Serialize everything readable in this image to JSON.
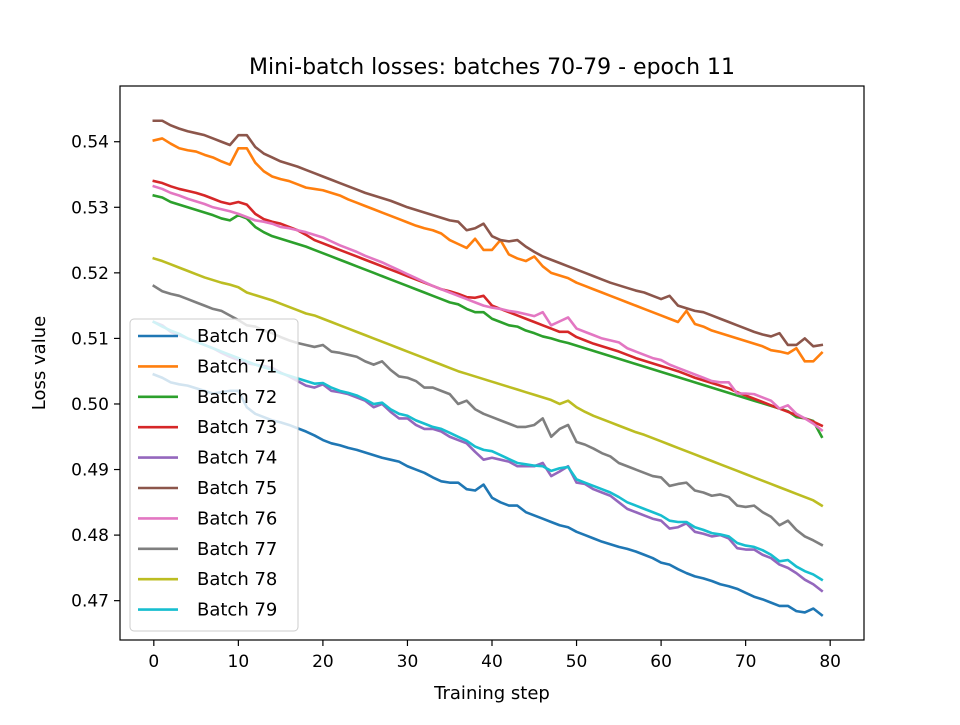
{
  "chart_data": {
    "type": "line",
    "title": "Mini-batch losses: batches 70-79 - epoch 11",
    "xlabel": "Training step",
    "ylabel": "Loss value",
    "xlim": [
      -4,
      84
    ],
    "ylim": [
      0.464,
      0.5485
    ],
    "xticks": [
      0,
      10,
      20,
      30,
      40,
      50,
      60,
      70,
      80
    ],
    "yticks": [
      0.47,
      0.48,
      0.49,
      0.5,
      0.51,
      0.52,
      0.53,
      0.54
    ],
    "ytick_labels": [
      "0.47",
      "0.48",
      "0.49",
      "0.50",
      "0.51",
      "0.52",
      "0.53",
      "0.54"
    ],
    "grid": false,
    "legend_position": "lower-left",
    "x": [
      0,
      1,
      2,
      3,
      4,
      5,
      6,
      7,
      8,
      9,
      10,
      11,
      12,
      13,
      14,
      15,
      16,
      17,
      18,
      19,
      20,
      21,
      22,
      23,
      24,
      25,
      26,
      27,
      28,
      29,
      30,
      31,
      32,
      33,
      34,
      35,
      36,
      37,
      38,
      39,
      40,
      41,
      42,
      43,
      44,
      45,
      46,
      47,
      48,
      49,
      50,
      51,
      52,
      53,
      54,
      55,
      56,
      57,
      58,
      59,
      60,
      61,
      62,
      63,
      64,
      65,
      66,
      67,
      68,
      69,
      70,
      71,
      72,
      73,
      74,
      75,
      76,
      77,
      78,
      79
    ],
    "series": [
      {
        "name": "Batch 70",
        "color": "#1f77b4",
        "values": [
          0.5045,
          0.504,
          0.5033,
          0.503,
          0.5028,
          0.5024,
          0.502,
          0.5016,
          0.5018,
          0.502,
          0.502,
          0.4995,
          0.4985,
          0.498,
          0.4975,
          0.4972,
          0.4968,
          0.4963,
          0.4958,
          0.4952,
          0.4945,
          0.494,
          0.4937,
          0.4933,
          0.493,
          0.4926,
          0.4922,
          0.4918,
          0.4915,
          0.4912,
          0.4905,
          0.49,
          0.4895,
          0.4888,
          0.4882,
          0.488,
          0.488,
          0.487,
          0.4868,
          0.4877,
          0.4857,
          0.485,
          0.4845,
          0.4845,
          0.4835,
          0.483,
          0.4825,
          0.482,
          0.4815,
          0.4812,
          0.4805,
          0.48,
          0.4795,
          0.479,
          0.4786,
          0.4782,
          0.4779,
          0.4775,
          0.477,
          0.4765,
          0.4758,
          0.4755,
          0.4748,
          0.4742,
          0.4737,
          0.4734,
          0.473,
          0.4725,
          0.4722,
          0.4718,
          0.4712,
          0.4706,
          0.4702,
          0.4697,
          0.4692,
          0.4692,
          0.4684,
          0.4682,
          0.4688,
          0.4678
        ]
      },
      {
        "name": "Batch 71",
        "color": "#ff7f0e",
        "values": [
          0.5402,
          0.5405,
          0.5397,
          0.539,
          0.5387,
          0.5385,
          0.538,
          0.5376,
          0.537,
          0.5365,
          0.539,
          0.539,
          0.5368,
          0.5355,
          0.5347,
          0.5343,
          0.534,
          0.5335,
          0.533,
          0.5328,
          0.5326,
          0.5322,
          0.5318,
          0.5312,
          0.5307,
          0.5302,
          0.5297,
          0.5292,
          0.5287,
          0.5282,
          0.5277,
          0.5272,
          0.5268,
          0.5265,
          0.526,
          0.525,
          0.5244,
          0.5238,
          0.5252,
          0.5235,
          0.5235,
          0.525,
          0.5228,
          0.5222,
          0.5218,
          0.5225,
          0.521,
          0.52,
          0.5196,
          0.5192,
          0.5185,
          0.518,
          0.5175,
          0.517,
          0.5165,
          0.516,
          0.5155,
          0.515,
          0.5145,
          0.514,
          0.5135,
          0.513,
          0.5125,
          0.5142,
          0.5122,
          0.5118,
          0.5112,
          0.5108,
          0.5104,
          0.51,
          0.5096,
          0.5092,
          0.5088,
          0.5082,
          0.508,
          0.5077,
          0.5085,
          0.5065,
          0.5065,
          0.5078
        ]
      },
      {
        "name": "Batch 72",
        "color": "#2ca02c",
        "values": [
          0.5318,
          0.5315,
          0.5308,
          0.5304,
          0.53,
          0.5296,
          0.5292,
          0.5288,
          0.5283,
          0.528,
          0.5288,
          0.5283,
          0.527,
          0.5262,
          0.5256,
          0.5252,
          0.5248,
          0.5244,
          0.524,
          0.5235,
          0.523,
          0.5225,
          0.522,
          0.5215,
          0.521,
          0.5205,
          0.52,
          0.5195,
          0.519,
          0.5185,
          0.518,
          0.5175,
          0.517,
          0.5165,
          0.516,
          0.5155,
          0.5152,
          0.5145,
          0.514,
          0.514,
          0.513,
          0.5125,
          0.512,
          0.5118,
          0.5112,
          0.5108,
          0.5103,
          0.51,
          0.5096,
          0.5093,
          0.5089,
          0.5085,
          0.5081,
          0.5077,
          0.5073,
          0.5069,
          0.5065,
          0.5061,
          0.5057,
          0.5053,
          0.5049,
          0.5045,
          0.5041,
          0.5037,
          0.5033,
          0.5029,
          0.5025,
          0.5021,
          0.5017,
          0.5013,
          0.5009,
          0.5005,
          0.5001,
          0.4997,
          0.4993,
          0.4989,
          0.498,
          0.4978,
          0.4974,
          0.495
        ]
      },
      {
        "name": "Batch 73",
        "color": "#d62728",
        "values": [
          0.534,
          0.5337,
          0.5332,
          0.5328,
          0.5325,
          0.5322,
          0.5318,
          0.5313,
          0.5308,
          0.5305,
          0.5308,
          0.5304,
          0.529,
          0.5282,
          0.5278,
          0.5275,
          0.527,
          0.5265,
          0.5258,
          0.525,
          0.5245,
          0.524,
          0.5235,
          0.523,
          0.5225,
          0.522,
          0.5215,
          0.521,
          0.5205,
          0.52,
          0.5195,
          0.519,
          0.5185,
          0.518,
          0.5175,
          0.5172,
          0.5168,
          0.5163,
          0.5162,
          0.5165,
          0.515,
          0.5145,
          0.514,
          0.5135,
          0.513,
          0.5125,
          0.512,
          0.5115,
          0.511,
          0.511,
          0.5102,
          0.5097,
          0.5092,
          0.5088,
          0.5084,
          0.508,
          0.5075,
          0.507,
          0.5066,
          0.5062,
          0.5058,
          0.5054,
          0.505,
          0.5045,
          0.504,
          0.5036,
          0.5032,
          0.5028,
          0.5024,
          0.5018,
          0.5013,
          0.5008,
          0.5003,
          0.4998,
          0.4993,
          0.4988,
          0.4983,
          0.4978,
          0.4973,
          0.4967
        ]
      },
      {
        "name": "Batch 74",
        "color": "#9467bd",
        "values": [
          0.5125,
          0.512,
          0.511,
          0.5105,
          0.51,
          0.5095,
          0.509,
          0.5085,
          0.5078,
          0.5072,
          0.5067,
          0.5062,
          0.506,
          0.5058,
          0.5055,
          0.5048,
          0.5042,
          0.5035,
          0.5028,
          0.5025,
          0.503,
          0.502,
          0.5018,
          0.5015,
          0.501,
          0.5005,
          0.4995,
          0.5,
          0.4988,
          0.4978,
          0.4978,
          0.4968,
          0.4962,
          0.4962,
          0.4958,
          0.495,
          0.4945,
          0.494,
          0.4927,
          0.4915,
          0.4918,
          0.4915,
          0.4912,
          0.4905,
          0.4905,
          0.4905,
          0.491,
          0.489,
          0.4897,
          0.4905,
          0.488,
          0.4878,
          0.487,
          0.4865,
          0.486,
          0.485,
          0.484,
          0.4835,
          0.483,
          0.4825,
          0.4822,
          0.481,
          0.4812,
          0.4818,
          0.4805,
          0.4802,
          0.4798,
          0.48,
          0.4795,
          0.478,
          0.4778,
          0.4778,
          0.477,
          0.4765,
          0.4755,
          0.475,
          0.4742,
          0.4732,
          0.4725,
          0.4715
        ]
      },
      {
        "name": "Batch 75",
        "color": "#8c564b",
        "values": [
          0.5432,
          0.5432,
          0.5425,
          0.542,
          0.5416,
          0.5413,
          0.541,
          0.5405,
          0.54,
          0.5395,
          0.541,
          0.541,
          0.5392,
          0.5382,
          0.5376,
          0.537,
          0.5366,
          0.5362,
          0.5357,
          0.5352,
          0.5347,
          0.5342,
          0.5337,
          0.5332,
          0.5327,
          0.5322,
          0.5318,
          0.5314,
          0.531,
          0.5305,
          0.53,
          0.5296,
          0.5292,
          0.5288,
          0.5284,
          0.528,
          0.5278,
          0.5265,
          0.5268,
          0.5275,
          0.5256,
          0.525,
          0.5248,
          0.525,
          0.524,
          0.5232,
          0.5225,
          0.522,
          0.5215,
          0.521,
          0.5205,
          0.52,
          0.5195,
          0.519,
          0.5185,
          0.5181,
          0.5177,
          0.5173,
          0.517,
          0.5165,
          0.516,
          0.5165,
          0.515,
          0.5146,
          0.5142,
          0.514,
          0.5135,
          0.513,
          0.5125,
          0.512,
          0.5115,
          0.511,
          0.5106,
          0.5103,
          0.5108,
          0.509,
          0.509,
          0.51,
          0.5088,
          0.509
        ]
      },
      {
        "name": "Batch 76",
        "color": "#e377c2",
        "values": [
          0.5332,
          0.5328,
          0.5322,
          0.5318,
          0.5313,
          0.5309,
          0.5305,
          0.53,
          0.5297,
          0.5294,
          0.529,
          0.5285,
          0.528,
          0.5278,
          0.5275,
          0.527,
          0.5268,
          0.5265,
          0.5262,
          0.5258,
          0.5254,
          0.5248,
          0.5242,
          0.5237,
          0.5232,
          0.5226,
          0.5221,
          0.5216,
          0.521,
          0.5204,
          0.5198,
          0.5192,
          0.5186,
          0.518,
          0.5175,
          0.517,
          0.5165,
          0.516,
          0.5155,
          0.515,
          0.5147,
          0.5145,
          0.5142,
          0.514,
          0.5137,
          0.5134,
          0.514,
          0.512,
          0.5126,
          0.5132,
          0.5115,
          0.511,
          0.5105,
          0.51,
          0.5097,
          0.5094,
          0.5085,
          0.508,
          0.5075,
          0.507,
          0.5067,
          0.506,
          0.5055,
          0.505,
          0.5045,
          0.504,
          0.5035,
          0.5033,
          0.5033,
          0.5016,
          0.5016,
          0.5015,
          0.501,
          0.5005,
          0.4993,
          0.4998,
          0.4985,
          0.4978,
          0.497,
          0.496
        ]
      },
      {
        "name": "Batch 77",
        "color": "#7f7f7f",
        "values": [
          0.518,
          0.5172,
          0.5168,
          0.5165,
          0.516,
          0.5155,
          0.515,
          0.5145,
          0.5142,
          0.5135,
          0.5128,
          0.512,
          0.5118,
          0.5112,
          0.5108,
          0.5102,
          0.5097,
          0.5093,
          0.509,
          0.5087,
          0.509,
          0.508,
          0.5078,
          0.5075,
          0.5072,
          0.5065,
          0.506,
          0.5065,
          0.5052,
          0.5042,
          0.504,
          0.5035,
          0.5025,
          0.5025,
          0.502,
          0.5015,
          0.5,
          0.5005,
          0.4992,
          0.4985,
          0.498,
          0.4975,
          0.497,
          0.4965,
          0.4965,
          0.4968,
          0.4978,
          0.495,
          0.4962,
          0.4968,
          0.4942,
          0.4938,
          0.4932,
          0.4925,
          0.492,
          0.491,
          0.4905,
          0.49,
          0.4895,
          0.489,
          0.4888,
          0.4875,
          0.4878,
          0.488,
          0.4868,
          0.4865,
          0.486,
          0.4862,
          0.4858,
          0.4845,
          0.4843,
          0.4845,
          0.4835,
          0.4828,
          0.4815,
          0.4822,
          0.4808,
          0.4798,
          0.4792,
          0.4785
        ]
      },
      {
        "name": "Batch 78",
        "color": "#bcbd22",
        "values": [
          0.5222,
          0.5218,
          0.5213,
          0.5208,
          0.5203,
          0.5198,
          0.5193,
          0.5189,
          0.5185,
          0.5182,
          0.5178,
          0.517,
          0.5166,
          0.5162,
          0.5158,
          0.5153,
          0.5148,
          0.5143,
          0.5138,
          0.5135,
          0.513,
          0.5125,
          0.512,
          0.5115,
          0.511,
          0.5105,
          0.51,
          0.5095,
          0.509,
          0.5085,
          0.508,
          0.5075,
          0.507,
          0.5065,
          0.506,
          0.5055,
          0.505,
          0.5046,
          0.5042,
          0.5038,
          0.5034,
          0.503,
          0.5026,
          0.5022,
          0.5018,
          0.5014,
          0.501,
          0.5006,
          0.5,
          0.5005,
          0.4995,
          0.4988,
          0.4982,
          0.4977,
          0.4972,
          0.4967,
          0.4962,
          0.4957,
          0.4953,
          0.4948,
          0.4943,
          0.4938,
          0.4933,
          0.4928,
          0.4923,
          0.4918,
          0.4913,
          0.4908,
          0.4903,
          0.4898,
          0.4893,
          0.4888,
          0.4883,
          0.4878,
          0.4873,
          0.4868,
          0.4863,
          0.4858,
          0.4853,
          0.4845
        ]
      },
      {
        "name": "Batch 79",
        "color": "#17becf",
        "values": [
          0.5125,
          0.5118,
          0.5112,
          0.5107,
          0.51,
          0.5095,
          0.509,
          0.5085,
          0.508,
          0.5075,
          0.507,
          0.5065,
          0.506,
          0.5056,
          0.5052,
          0.5047,
          0.5043,
          0.5039,
          0.5035,
          0.5031,
          0.5032,
          0.5025,
          0.502,
          0.5017,
          0.5013,
          0.5007,
          0.5,
          0.5002,
          0.4992,
          0.4985,
          0.4982,
          0.4975,
          0.497,
          0.4965,
          0.4962,
          0.4956,
          0.495,
          0.4944,
          0.4935,
          0.493,
          0.4928,
          0.4922,
          0.4916,
          0.491,
          0.4908,
          0.4906,
          0.4905,
          0.4898,
          0.4902,
          0.4904,
          0.4885,
          0.488,
          0.4875,
          0.487,
          0.4865,
          0.4858,
          0.485,
          0.4845,
          0.484,
          0.4835,
          0.483,
          0.4822,
          0.482,
          0.482,
          0.4812,
          0.4808,
          0.4803,
          0.4801,
          0.4798,
          0.4788,
          0.4784,
          0.4782,
          0.4777,
          0.477,
          0.476,
          0.4762,
          0.4752,
          0.4745,
          0.474,
          0.4732
        ]
      }
    ]
  }
}
